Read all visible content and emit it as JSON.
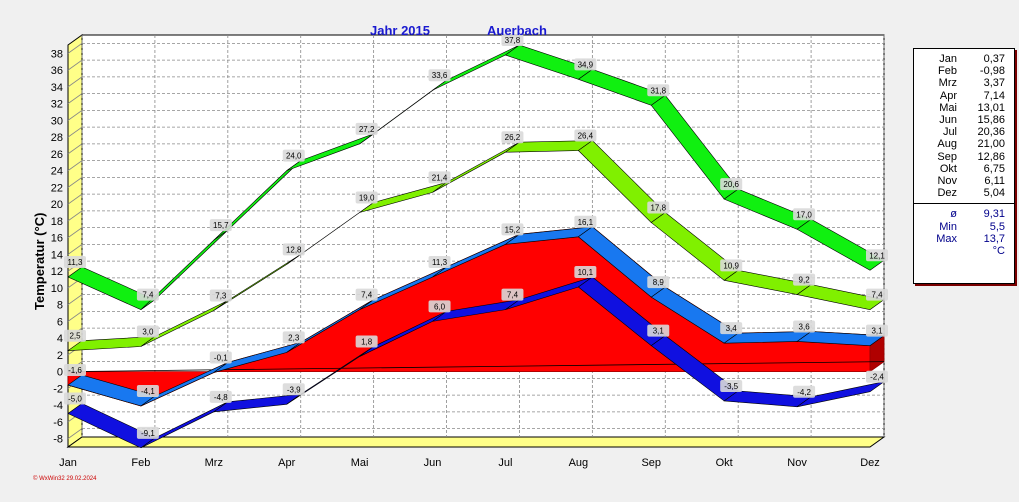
{
  "chart_data": {
    "type": "area",
    "title": "Jahr  2015",
    "station": "Auerbach",
    "ylabel": "Temperatur  (°C)",
    "ylim": [
      -9,
      39
    ],
    "yticks": [
      -8,
      -6,
      -4,
      -2,
      0,
      2,
      4,
      6,
      8,
      10,
      12,
      14,
      16,
      18,
      20,
      22,
      24,
      26,
      28,
      30,
      32,
      34,
      36,
      38
    ],
    "categories": [
      "Jan",
      "Feb",
      "Mrz",
      "Apr",
      "Mai",
      "Jun",
      "Jul",
      "Aug",
      "Sep",
      "Okt",
      "Nov",
      "Dez"
    ],
    "xlabels": [
      "Jan",
      "Feb",
      "Mrz",
      "Apr",
      "Mai",
      "Jun",
      "Jul",
      "Aug",
      "Sep",
      "Okt",
      "Nov",
      "Dez"
    ],
    "series": [
      {
        "name": "Absolute Maximum",
        "color": "#10f010",
        "values": [
          11.3,
          7.4,
          15.7,
          24.0,
          27.2,
          33.6,
          37.8,
          34.9,
          31.8,
          20.6,
          17.0,
          12.1
        ],
        "labels": [
          "11,3",
          "7,4",
          "15,7",
          "24,0",
          "27,2",
          "33,6",
          "37,8",
          "34,9",
          "31,8",
          "20,6",
          "17,0",
          "12,1"
        ]
      },
      {
        "name": "Mittleres Maximum",
        "color": "#80f000",
        "values": [
          2.5,
          3.0,
          7.3,
          12.8,
          19.0,
          21.4,
          26.2,
          26.4,
          17.8,
          10.9,
          9.2,
          7.4
        ],
        "labels": [
          "2,5",
          "3,0",
          "7,3",
          "12,8",
          "19,0",
          "21,4",
          "26,2",
          "26,4",
          "17,8",
          "10,9",
          "9,2",
          "7,4"
        ]
      },
      {
        "name": "Mittel",
        "color": "#1878f0",
        "values": [
          -1.6,
          -4.1,
          -0.1,
          2.3,
          7.4,
          11.3,
          15.2,
          16.1,
          8.9,
          3.4,
          3.6,
          3.1
        ],
        "labels": [
          "-1,6",
          "-4,1",
          "-0,1",
          "2,3",
          "7,4",
          "11,3",
          "15,2",
          "16,1",
          "8,9",
          "3,4",
          "3,6",
          "3,1"
        ]
      },
      {
        "name": "Mittleres Minimum",
        "color": "#1010e0",
        "values": [
          -5.0,
          -9.1,
          -4.8,
          -3.9,
          1.8,
          6.0,
          7.4,
          10.1,
          3.1,
          -3.5,
          -4.2,
          -2.4
        ],
        "labels": [
          "-5,0",
          "-9,1",
          "-4,8",
          "-3,9",
          "1,8",
          "6,0",
          "7,4",
          "10,1",
          "3,1",
          "-3,5",
          "-4,2",
          "-2,4"
        ]
      }
    ],
    "monthly_means": [
      0.37,
      -0.98,
      3.37,
      7.14,
      13.01,
      15.86,
      20.36,
      21.0,
      12.86,
      6.75,
      6.11,
      5.04
    ]
  },
  "legend": {
    "months": [
      {
        "m": "Jan",
        "v": "0,37"
      },
      {
        "m": "Feb",
        "v": "-0,98"
      },
      {
        "m": "Mrz",
        "v": "3,37"
      },
      {
        "m": "Apr",
        "v": "7,14"
      },
      {
        "m": "Mai",
        "v": "13,01"
      },
      {
        "m": "Jun",
        "v": "15,86"
      },
      {
        "m": "Jul",
        "v": "20,36"
      },
      {
        "m": "Aug",
        "v": "21,00"
      },
      {
        "m": "Sep",
        "v": "12,86"
      },
      {
        "m": "Okt",
        "v": "6,75"
      },
      {
        "m": "Nov",
        "v": "6,11"
      },
      {
        "m": "Dez",
        "v": "5,04"
      }
    ],
    "stats": [
      {
        "m": "ø",
        "v": "9,31"
      },
      {
        "m": "Min",
        "v": "5,5"
      },
      {
        "m": "Max",
        "v": "13,7"
      }
    ],
    "unit": "°C"
  },
  "credit": "© WxWin32  29.02.2024",
  "colors": {
    "background": "#f0f0f0",
    "plot_background": "#ffffff",
    "floor": "#ffff88",
    "mean_area": "#ff0000",
    "mean_area_side": "#b00000",
    "title": "#1a1ad0"
  }
}
